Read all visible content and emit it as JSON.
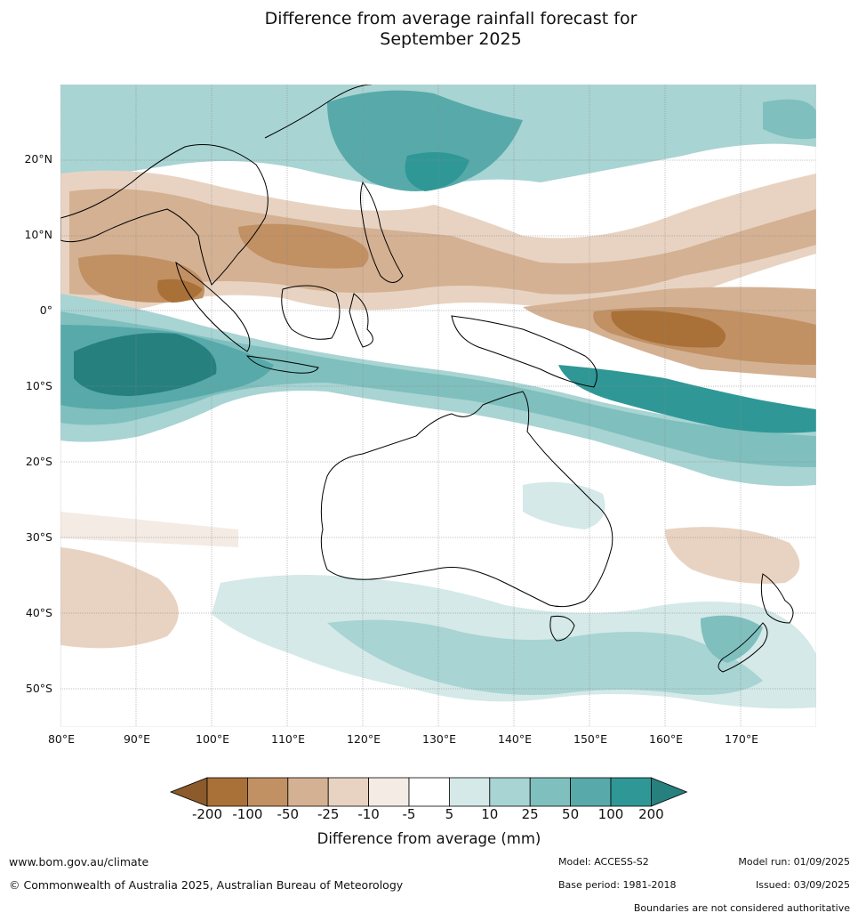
{
  "title_line1": "Difference from average rainfall forecast for",
  "title_line2": "September 2025",
  "lat_labels": [
    "20°N",
    "10°N",
    "0°",
    "10°S",
    "20°S",
    "30°S",
    "40°S",
    "50°S"
  ],
  "lon_labels": [
    "80°E",
    "90°E",
    "100°E",
    "110°E",
    "120°E",
    "130°E",
    "140°E",
    "150°E",
    "160°E",
    "170°E"
  ],
  "colorbar": {
    "ticks": [
      "-200",
      "-100",
      "-50",
      "-25",
      "-10",
      "-5",
      "5",
      "10",
      "25",
      "50",
      "100",
      "200"
    ],
    "colors": [
      "#a97038",
      "#c19063",
      "#d4b193",
      "#e8d3c2",
      "#f4ebe5",
      "#ffffff",
      "#d4e9e8",
      "#a8d4d3",
      "#7fbfbe",
      "#57aaa9",
      "#2f9896"
    ],
    "extend_low_color": "#8c5a2b",
    "extend_high_color": "#26807d",
    "label": "Difference from average (mm)"
  },
  "footer": {
    "url": "www.bom.gov.au/climate",
    "copyright": "© Commonwealth of Australia 2025, Australian Bureau of Meteorology",
    "model": "Model: ACCESS-S2",
    "base_period": "Base period: 1981-2018",
    "model_run": "Model run: 01/09/2025",
    "issued": "Issued: 03/09/2025",
    "disclaimer": "Boundaries are not considered authoritative"
  }
}
